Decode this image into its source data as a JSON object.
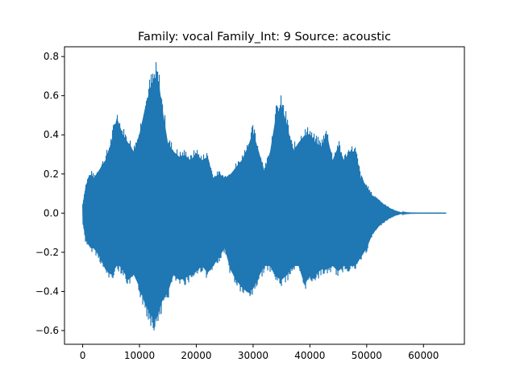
{
  "chart_data": {
    "type": "area",
    "title": "Family: vocal Family_Int: 9 Source: acoustic",
    "xlabel": "",
    "ylabel": "",
    "xlim": [
      -3200,
      67200
    ],
    "ylim": [
      -0.67,
      0.85
    ],
    "x_ticks": [
      {
        "value": 0,
        "label": "0"
      },
      {
        "value": 10000,
        "label": "10000"
      },
      {
        "value": 20000,
        "label": "20000"
      },
      {
        "value": 30000,
        "label": "30000"
      },
      {
        "value": 40000,
        "label": "40000"
      },
      {
        "value": 50000,
        "label": "50000"
      },
      {
        "value": 60000,
        "label": "60000"
      }
    ],
    "y_ticks": [
      {
        "value": -0.6,
        "label": "−0.6"
      },
      {
        "value": -0.4,
        "label": "−0.4"
      },
      {
        "value": -0.2,
        "label": "−0.2"
      },
      {
        "value": 0.0,
        "label": "0.0"
      },
      {
        "value": 0.2,
        "label": "0.2"
      },
      {
        "value": 0.4,
        "label": "0.4"
      },
      {
        "value": 0.6,
        "label": "0.6"
      },
      {
        "value": 0.8,
        "label": "0.8"
      }
    ],
    "grid": false,
    "legend": "none",
    "series_color": "#1f77b4",
    "waveform_envelope": {
      "x": [
        0,
        500,
        1000,
        1500,
        2000,
        3000,
        4000,
        5000,
        6000,
        6500,
        7000,
        8000,
        9000,
        10000,
        11000,
        12000,
        12500,
        13000,
        13500,
        14000,
        15000,
        16000,
        17000,
        18000,
        19000,
        20000,
        21000,
        22000,
        23000,
        24000,
        25000,
        26000,
        27000,
        28000,
        29000,
        30000,
        31000,
        32000,
        33000,
        34000,
        35000,
        36000,
        37000,
        38000,
        39000,
        40000,
        41000,
        42000,
        43000,
        44000,
        45000,
        46000,
        47000,
        48000,
        49000,
        50000,
        51000,
        52000,
        53000,
        54000,
        55000,
        56000,
        57000,
        58000,
        60000,
        62000,
        64000
      ],
      "upper": [
        0.05,
        0.15,
        0.2,
        0.22,
        0.2,
        0.25,
        0.3,
        0.4,
        0.54,
        0.5,
        0.45,
        0.4,
        0.35,
        0.45,
        0.6,
        0.72,
        0.75,
        0.78,
        0.72,
        0.6,
        0.4,
        0.35,
        0.32,
        0.33,
        0.3,
        0.34,
        0.3,
        0.32,
        0.2,
        0.22,
        0.2,
        0.22,
        0.26,
        0.3,
        0.37,
        0.46,
        0.35,
        0.24,
        0.35,
        0.55,
        0.61,
        0.5,
        0.35,
        0.4,
        0.44,
        0.45,
        0.4,
        0.38,
        0.45,
        0.3,
        0.38,
        0.3,
        0.35,
        0.35,
        0.2,
        0.15,
        0.1,
        0.08,
        0.05,
        0.03,
        0.015,
        0.005,
        0.002,
        0.001,
        0.0,
        0.0,
        0.0
      ],
      "lower": [
        -0.05,
        -0.15,
        -0.18,
        -0.2,
        -0.2,
        -0.25,
        -0.32,
        -0.35,
        -0.3,
        -0.3,
        -0.32,
        -0.38,
        -0.35,
        -0.42,
        -0.52,
        -0.58,
        -0.6,
        -0.6,
        -0.55,
        -0.5,
        -0.45,
        -0.35,
        -0.38,
        -0.37,
        -0.35,
        -0.33,
        -0.3,
        -0.34,
        -0.3,
        -0.25,
        -0.2,
        -0.32,
        -0.38,
        -0.42,
        -0.45,
        -0.43,
        -0.36,
        -0.3,
        -0.3,
        -0.36,
        -0.38,
        -0.35,
        -0.3,
        -0.3,
        -0.4,
        -0.36,
        -0.35,
        -0.32,
        -0.32,
        -0.3,
        -0.33,
        -0.3,
        -0.3,
        -0.3,
        -0.25,
        -0.2,
        -0.12,
        -0.08,
        -0.05,
        -0.03,
        -0.015,
        -0.005,
        -0.002,
        -0.001,
        0.0,
        0.0,
        0.0
      ]
    }
  }
}
